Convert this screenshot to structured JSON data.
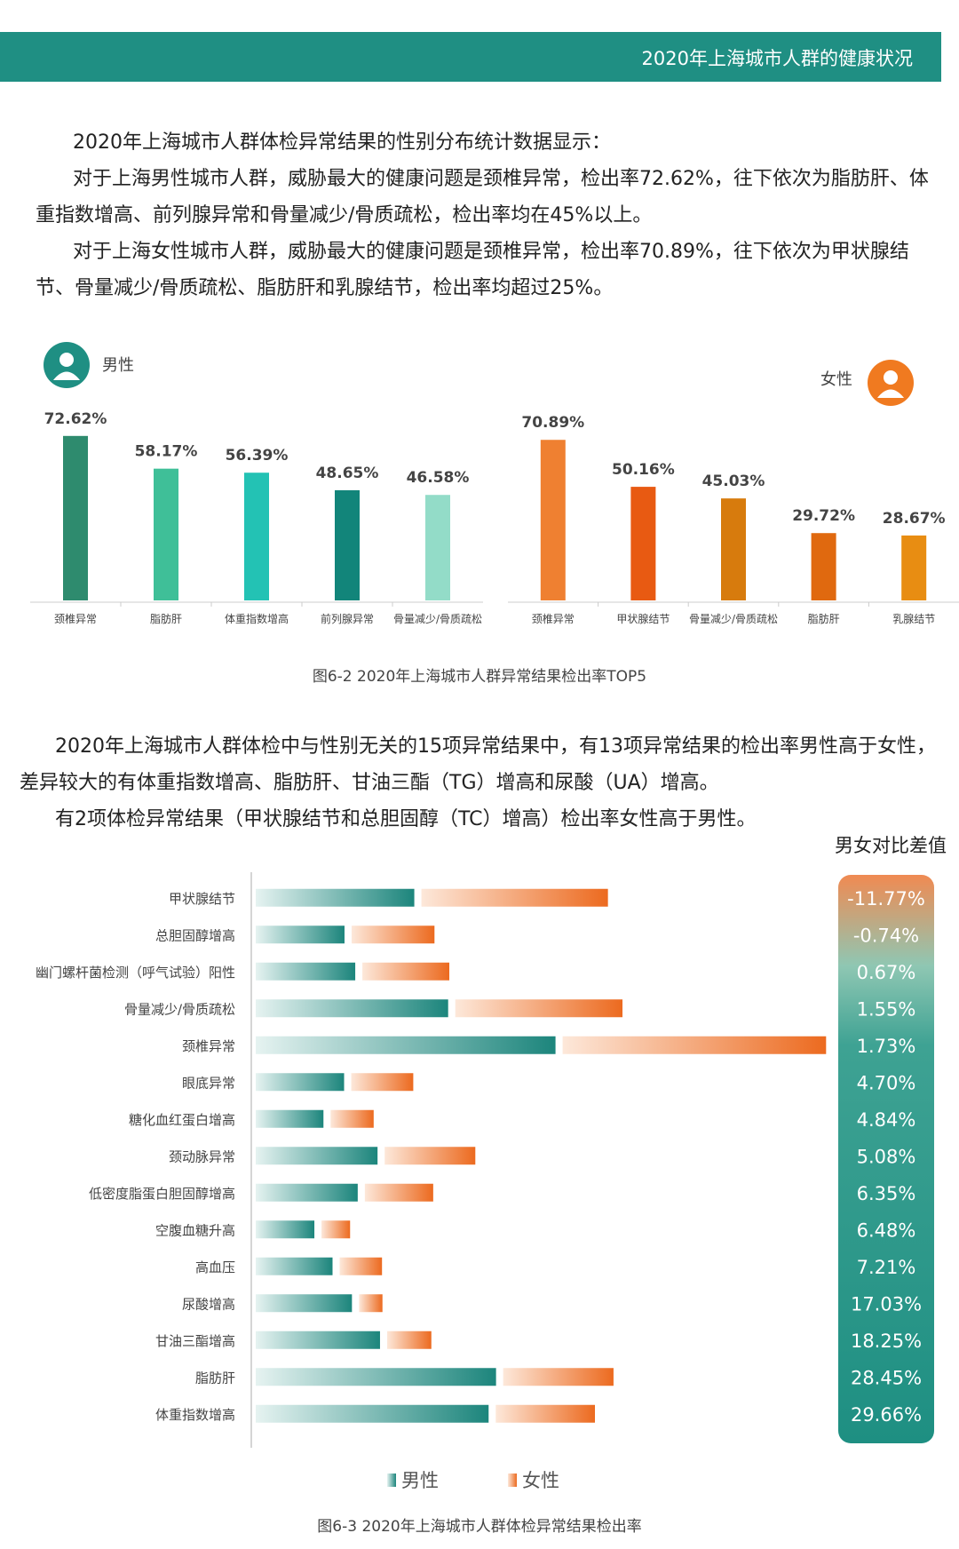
{
  "header": {
    "title": "2020年上海城市人群的健康状况"
  },
  "intro": {
    "p1": "2020年上海城市人群体检异常结果的性别分布统计数据显示：",
    "p2": "对于上海男性城市人群，威胁最大的健康问题是颈椎异常，检出率72.62%，往下依次为脂肪肝、体重指数增高、前列腺异常和骨量减少/骨质疏松，检出率均在45%以上。",
    "p3": "对于上海女性城市人群，威胁最大的健康问题是颈椎异常，检出率70.89%，往下依次为甲状腺结节、骨量减少/骨质疏松、脂肪肝和乳腺结节，检出率均超过25%。"
  },
  "intro2": {
    "p1": "2020年上海城市人群体检中与性别无关的15项异常结果中，有13项异常结果的检出率男性高于女性，差异较大的有体重指数增高、脂肪肝、甘油三酯（TG）增高和尿酸（UA）增高。",
    "p2": "有2项体检异常结果（甲状腺结节和总胆固醇（TC）增高）检出率女性高于男性。"
  },
  "colors": {
    "male_accent": "#1f8f83",
    "female_accent": "#f07a20",
    "header_bg": "#1f8f83"
  },
  "chart_data": [
    {
      "type": "bar",
      "title": "图6-2 2020年上海城市人群异常结果检出率TOP5",
      "panel_label": "男性",
      "icon": "male-user-icon",
      "categories": [
        "颈椎异常",
        "脂肪肝",
        "体重指数增高",
        "前列腺异常",
        "骨量减少/骨质疏松"
      ],
      "values": [
        72.62,
        58.17,
        56.39,
        48.65,
        46.58
      ],
      "value_labels": [
        "72.62%",
        "58.17%",
        "56.39%",
        "48.65%",
        "46.58%"
      ],
      "colors": [
        "#2e8b6e",
        "#3fbf98",
        "#23c2b4",
        "#12857a",
        "#93dcc8"
      ],
      "ylim": [
        0,
        80
      ]
    },
    {
      "type": "bar",
      "panel_label": "女性",
      "icon": "female-user-icon",
      "categories": [
        "颈椎异常",
        "甲状腺结节",
        "骨量减少/骨质疏松",
        "脂肪肝",
        "乳腺结节"
      ],
      "values": [
        70.89,
        50.16,
        45.03,
        29.72,
        28.67
      ],
      "value_labels": [
        "70.89%",
        "50.16%",
        "45.03%",
        "29.72%",
        "28.67%"
      ],
      "colors": [
        "#ef8031",
        "#e85a12",
        "#d77b0d",
        "#e0690f",
        "#e88d12"
      ],
      "ylim": [
        0,
        80
      ]
    },
    {
      "type": "bar",
      "orientation": "horizontal",
      "title": "图6-3 2020年上海城市人群体检异常结果检出率",
      "diff_header": "男女对比差值",
      "categories": [
        "甲状腺结节",
        "总胆固醇增高",
        "幽门螺杆菌检测（呼气试验）阳性",
        "骨量减少/骨质疏松",
        "颈椎异常",
        "眼底异常",
        "糖化血红蛋白增高",
        "颈动脉异常",
        "低密度脂蛋白胆固醇增高",
        "空腹血糖升高",
        "高血压",
        "尿酸增高",
        "甘油三酯增高",
        "脂肪肝",
        "体重指数增高"
      ],
      "series": [
        {
          "name": "男性",
          "values": [
            38.4,
            21.5,
            24.1,
            46.6,
            72.6,
            21.4,
            16.4,
            29.5,
            24.7,
            14.2,
            18.6,
            23.3,
            30.1,
            58.2,
            56.4
          ]
        },
        {
          "name": "女性",
          "values": [
            50.2,
            22.3,
            23.4,
            45.0,
            70.9,
            16.7,
            11.6,
            24.4,
            18.4,
            7.7,
            11.4,
            6.3,
            11.9,
            29.7,
            26.7
          ]
        }
      ],
      "diff_labels": [
        "-11.77%",
        "-0.74%",
        "0.67%",
        "1.55%",
        "1.73%",
        "4.70%",
        "4.84%",
        "5.08%",
        "6.35%",
        "6.48%",
        "7.21%",
        "17.03%",
        "18.25%",
        "28.45%",
        "29.66%"
      ]
    }
  ]
}
